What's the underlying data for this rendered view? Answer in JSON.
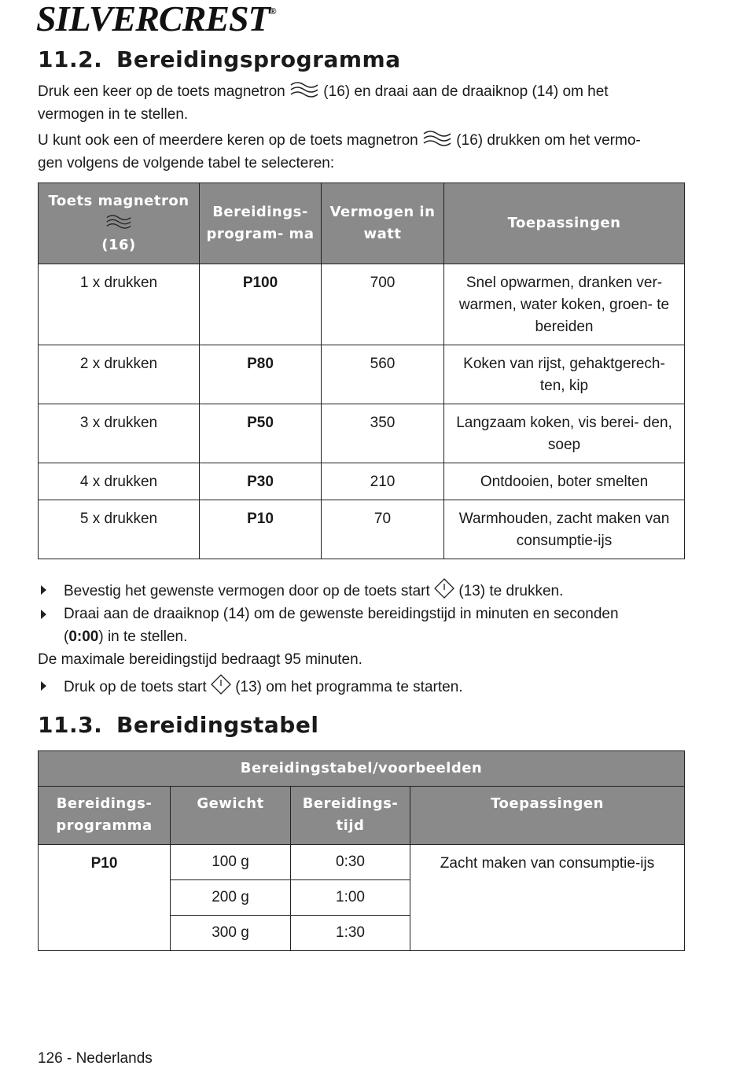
{
  "logo": {
    "text": "SILVERCREST",
    "mark": "®"
  },
  "section1": {
    "number": "11.2.",
    "title": "Bereidingsprogramma",
    "para1_a": "Druk een keer op de toets magnetron ",
    "para1_b": " (16) en draai aan de draaiknop (14) om het",
    "para1_c": "vermogen in te stellen.",
    "para2_a": "U kunt ook een of meerdere keren op de toets magnetron ",
    "para2_b": " (16) drukken om het vermo-",
    "para2_c": "gen volgens de volgende tabel te selecteren:",
    "table": {
      "headers": [
        "Toets magnetron",
        "(16)",
        "Bereidings- program- ma",
        "Vermogen in watt",
        "Toepassingen"
      ],
      "rows": [
        [
          "1 x drukken",
          "P100",
          "700",
          "Snel opwarmen, dranken ver- warmen, water koken, groen- te bereiden"
        ],
        [
          "2 x drukken",
          "P80",
          "560",
          "Koken van rijst, gehaktgerech- ten, kip"
        ],
        [
          "3 x drukken",
          "P50",
          "350",
          "Langzaam koken, vis berei- den, soep"
        ],
        [
          "4 x drukken",
          "P30",
          "210",
          "Ontdooien, boter smelten"
        ],
        [
          "5 x drukken",
          "P10",
          "70",
          "Warmhouden, zacht maken van consumptie-ijs"
        ]
      ]
    },
    "bullet1_a": "Bevestig het gewenste vermogen door op de toets start ",
    "bullet1_b": " (13) te drukken.",
    "bullet2_a": "Draai aan de draaiknop (14) om de gewenste bereidingstijd in minuten en seconden",
    "bullet2_b": "(",
    "bullet2_bold": "0:00",
    "bullet2_c": ") in te stellen.",
    "note": "De maximale bereidingstijd bedraagt 95 minuten.",
    "bullet3_a": "Druk op de toets start ",
    "bullet3_b": " (13) om het programma te starten."
  },
  "section2": {
    "number": "11.3.",
    "title": "Bereidingstabel",
    "table": {
      "title": "Bereidingstabel/voorbeelden",
      "headers": [
        "Bereidings- programma",
        "Gewicht",
        "Bereidings- tijd",
        "Toepassingen"
      ],
      "program": "P10",
      "application": "Zacht maken van consumptie-ijs",
      "rows": [
        [
          "100 g",
          "0:30"
        ],
        [
          "200 g",
          "1:00"
        ],
        [
          "300 g",
          "1:30"
        ]
      ]
    }
  },
  "footer": "126 - Nederlands",
  "icons": {
    "microwave": "microwave-waves-icon",
    "start": "start-diamond-icon"
  },
  "colors": {
    "header_bg": "#8a8a8a"
  }
}
